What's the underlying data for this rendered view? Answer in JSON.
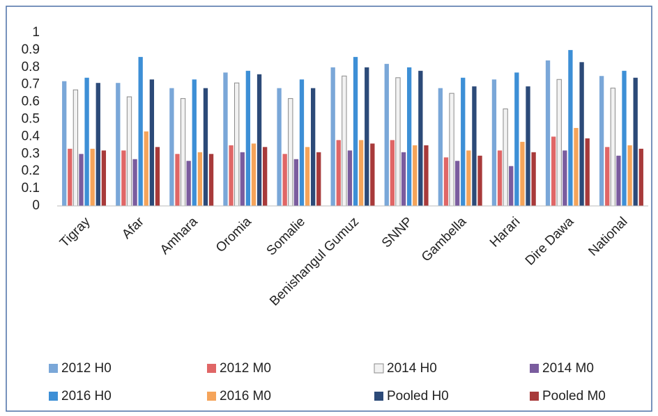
{
  "chart_data": {
    "type": "bar",
    "categories": [
      "Tigray",
      "Afar",
      "Amhara",
      "Oromia",
      "Somalie",
      "Benishangul Gumuz",
      "SNNP",
      "Gambella",
      "Harari",
      "Dire Dawa",
      "National"
    ],
    "series": [
      {
        "name": "2012 H0",
        "color": "#7aa7d8",
        "values": [
          0.72,
          0.71,
          0.68,
          0.77,
          0.68,
          0.8,
          0.82,
          0.68,
          0.73,
          0.84,
          0.75
        ]
      },
      {
        "name": "2012 M0",
        "color": "#e06666",
        "values": [
          0.33,
          0.32,
          0.3,
          0.35,
          0.3,
          0.38,
          0.38,
          0.28,
          0.32,
          0.4,
          0.34
        ]
      },
      {
        "name": "2014 H0",
        "color": "#f2f2f2",
        "values": [
          0.67,
          0.63,
          0.62,
          0.71,
          0.62,
          0.75,
          0.74,
          0.65,
          0.56,
          0.73,
          0.68
        ]
      },
      {
        "name": "2014 M0",
        "color": "#7a5c9e",
        "values": [
          0.3,
          0.27,
          0.26,
          0.31,
          0.27,
          0.32,
          0.31,
          0.26,
          0.23,
          0.32,
          0.29
        ]
      },
      {
        "name": "2016 H0",
        "color": "#3d8fd6",
        "values": [
          0.74,
          0.86,
          0.73,
          0.78,
          0.73,
          0.86,
          0.8,
          0.74,
          0.77,
          0.9,
          0.78
        ]
      },
      {
        "name": "2016 M0",
        "color": "#f5a45a",
        "values": [
          0.33,
          0.43,
          0.31,
          0.36,
          0.34,
          0.38,
          0.35,
          0.32,
          0.37,
          0.45,
          0.35
        ]
      },
      {
        "name": "Pooled H0",
        "color": "#2c4a78",
        "values": [
          0.71,
          0.73,
          0.68,
          0.76,
          0.68,
          0.8,
          0.78,
          0.69,
          0.69,
          0.83,
          0.74
        ]
      },
      {
        "name": "Pooled M0",
        "color": "#a83a3a",
        "values": [
          0.32,
          0.34,
          0.3,
          0.34,
          0.31,
          0.36,
          0.35,
          0.29,
          0.31,
          0.39,
          0.33
        ]
      }
    ],
    "ylim": [
      0,
      1
    ],
    "yticks": [
      0,
      0.1,
      0.2,
      0.3,
      0.4,
      0.5,
      0.6,
      0.7,
      0.8,
      0.9,
      1
    ],
    "grid": false,
    "legend": "bottom"
  }
}
